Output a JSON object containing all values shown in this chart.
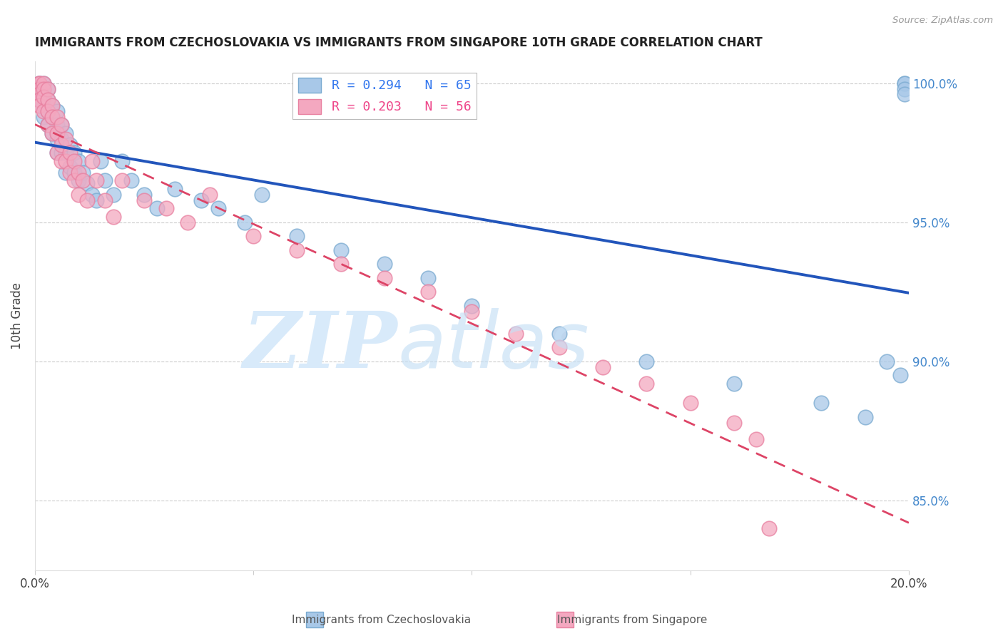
{
  "title": "IMMIGRANTS FROM CZECHOSLOVAKIA VS IMMIGRANTS FROM SINGAPORE 10TH GRADE CORRELATION CHART",
  "source": "Source: ZipAtlas.com",
  "ylabel": "10th Grade",
  "xlim": [
    0.0,
    0.2
  ],
  "ylim": [
    0.825,
    1.008
  ],
  "blue_color": "#A8C8E8",
  "pink_color": "#F4A8C0",
  "blue_edge_color": "#7AAAD0",
  "pink_edge_color": "#E880A0",
  "blue_line_color": "#2255BB",
  "pink_line_color": "#DD4466",
  "legend_blue_label": "R = 0.294   N = 65",
  "legend_pink_label": "R = 0.203   N = 56",
  "watermark_zip": "ZIP",
  "watermark_atlas": "atlas",
  "bottom_legend_blue": "Immigrants from Czechoslovakia",
  "bottom_legend_pink": "Immigrants from Singapore",
  "blue_x": [
    0.001,
    0.001,
    0.001,
    0.001,
    0.001,
    0.002,
    0.002,
    0.002,
    0.002,
    0.002,
    0.003,
    0.003,
    0.003,
    0.003,
    0.004,
    0.004,
    0.004,
    0.005,
    0.005,
    0.005,
    0.005,
    0.006,
    0.006,
    0.006,
    0.007,
    0.007,
    0.007,
    0.008,
    0.008,
    0.009,
    0.009,
    0.01,
    0.01,
    0.011,
    0.012,
    0.013,
    0.014,
    0.015,
    0.016,
    0.018,
    0.02,
    0.022,
    0.025,
    0.028,
    0.032,
    0.038,
    0.042,
    0.048,
    0.052,
    0.06,
    0.07,
    0.08,
    0.09,
    0.1,
    0.12,
    0.14,
    0.16,
    0.18,
    0.19,
    0.195,
    0.198,
    0.199,
    0.199,
    0.199,
    0.199
  ],
  "blue_y": [
    1.0,
    1.0,
    0.998,
    0.996,
    0.994,
    1.0,
    0.998,
    0.996,
    0.992,
    0.988,
    0.998,
    0.994,
    0.99,
    0.985,
    0.992,
    0.988,
    0.982,
    0.99,
    0.985,
    0.98,
    0.975,
    0.985,
    0.98,
    0.975,
    0.982,
    0.975,
    0.968,
    0.978,
    0.97,
    0.975,
    0.968,
    0.972,
    0.965,
    0.968,
    0.964,
    0.96,
    0.958,
    0.972,
    0.965,
    0.96,
    0.972,
    0.965,
    0.96,
    0.955,
    0.962,
    0.958,
    0.955,
    0.95,
    0.96,
    0.945,
    0.94,
    0.935,
    0.93,
    0.92,
    0.91,
    0.9,
    0.892,
    0.885,
    0.88,
    0.9,
    0.895,
    1.0,
    1.0,
    0.998,
    0.996
  ],
  "pink_x": [
    0.001,
    0.001,
    0.001,
    0.001,
    0.001,
    0.001,
    0.002,
    0.002,
    0.002,
    0.002,
    0.003,
    0.003,
    0.003,
    0.003,
    0.004,
    0.004,
    0.004,
    0.005,
    0.005,
    0.005,
    0.006,
    0.006,
    0.006,
    0.007,
    0.007,
    0.008,
    0.008,
    0.009,
    0.009,
    0.01,
    0.01,
    0.011,
    0.012,
    0.013,
    0.014,
    0.016,
    0.018,
    0.02,
    0.025,
    0.03,
    0.035,
    0.04,
    0.05,
    0.06,
    0.07,
    0.08,
    0.09,
    0.1,
    0.11,
    0.12,
    0.13,
    0.14,
    0.15,
    0.16,
    0.165,
    0.168
  ],
  "pink_y": [
    1.0,
    1.0,
    0.998,
    0.996,
    0.994,
    0.992,
    1.0,
    0.998,
    0.995,
    0.99,
    0.998,
    0.994,
    0.99,
    0.985,
    0.992,
    0.988,
    0.982,
    0.988,
    0.982,
    0.975,
    0.985,
    0.978,
    0.972,
    0.98,
    0.972,
    0.975,
    0.968,
    0.972,
    0.965,
    0.968,
    0.96,
    0.965,
    0.958,
    0.972,
    0.965,
    0.958,
    0.952,
    0.965,
    0.958,
    0.955,
    0.95,
    0.96,
    0.945,
    0.94,
    0.935,
    0.93,
    0.925,
    0.918,
    0.91,
    0.905,
    0.898,
    0.892,
    0.885,
    0.878,
    0.872,
    0.84
  ]
}
